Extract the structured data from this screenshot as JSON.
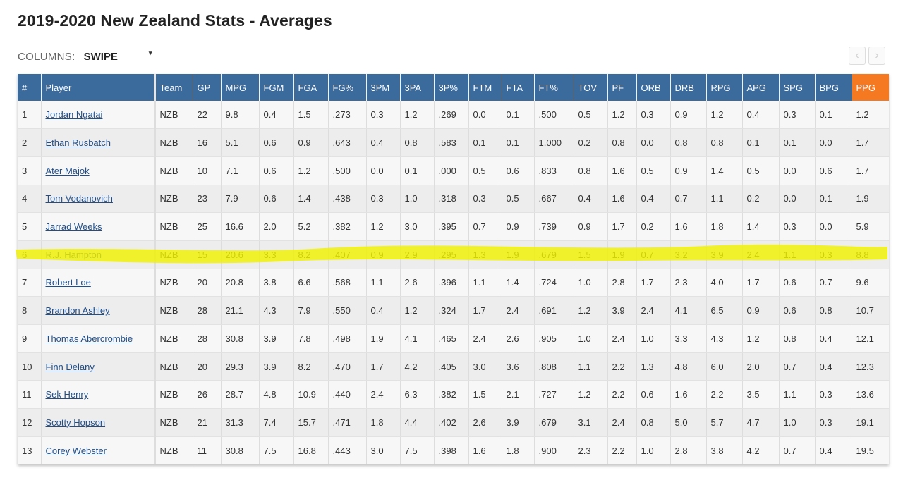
{
  "header": {
    "title": "2019-2020 New Zealand Stats - Averages"
  },
  "columns_control": {
    "label": "COLUMNS:",
    "value": "SWIPE",
    "caret": "▾"
  },
  "pager": {
    "prev": "‹",
    "next": "›"
  },
  "colors": {
    "header_bg": "#3b6a9d",
    "ppg_header_bg": "#f47920",
    "highlight": "#f0f000",
    "link": "#1f4e8a"
  },
  "table": {
    "columns": [
      "#",
      "Player",
      "Team",
      "GP",
      "MPG",
      "FGM",
      "FGA",
      "FG%",
      "3PM",
      "3PA",
      "3P%",
      "FTM",
      "FTA",
      "FT%",
      "TOV",
      "PF",
      "ORB",
      "DRB",
      "RPG",
      "APG",
      "SPG",
      "BPG",
      "PPG"
    ],
    "rows": [
      [
        "1",
        "Jordan Ngatai",
        "NZB",
        "22",
        "9.8",
        "0.4",
        "1.5",
        ".273",
        "0.3",
        "1.2",
        ".269",
        "0.0",
        "0.1",
        ".500",
        "0.5",
        "1.2",
        "0.3",
        "0.9",
        "1.2",
        "0.4",
        "0.3",
        "0.1",
        "1.2"
      ],
      [
        "2",
        "Ethan Rusbatch",
        "NZB",
        "16",
        "5.1",
        "0.6",
        "0.9",
        ".643",
        "0.4",
        "0.8",
        ".583",
        "0.1",
        "0.1",
        "1.000",
        "0.2",
        "0.8",
        "0.0",
        "0.8",
        "0.8",
        "0.1",
        "0.1",
        "0.0",
        "1.7"
      ],
      [
        "3",
        "Ater Majok",
        "NZB",
        "10",
        "7.1",
        "0.6",
        "1.2",
        ".500",
        "0.0",
        "0.1",
        ".000",
        "0.5",
        "0.6",
        ".833",
        "0.8",
        "1.6",
        "0.5",
        "0.9",
        "1.4",
        "0.5",
        "0.0",
        "0.6",
        "1.7"
      ],
      [
        "4",
        "Tom Vodanovich",
        "NZB",
        "23",
        "7.9",
        "0.6",
        "1.4",
        ".438",
        "0.3",
        "1.0",
        ".318",
        "0.3",
        "0.5",
        ".667",
        "0.4",
        "1.6",
        "0.4",
        "0.7",
        "1.1",
        "0.2",
        "0.0",
        "0.1",
        "1.9"
      ],
      [
        "5",
        "Jarrad Weeks",
        "NZB",
        "25",
        "16.6",
        "2.0",
        "5.2",
        ".382",
        "1.2",
        "3.0",
        ".395",
        "0.7",
        "0.9",
        ".739",
        "0.9",
        "1.7",
        "0.2",
        "1.6",
        "1.8",
        "1.4",
        "0.3",
        "0.0",
        "5.9"
      ],
      [
        "6",
        "R.J. Hampton",
        "NZB",
        "15",
        "20.6",
        "3.3",
        "8.2",
        ".407",
        "0.9",
        "2.9",
        ".295",
        "1.3",
        "1.9",
        ".679",
        "1.5",
        "1.9",
        "0.7",
        "3.2",
        "3.9",
        "2.4",
        "1.1",
        "0.3",
        "8.8"
      ],
      [
        "7",
        "Robert Loe",
        "NZB",
        "20",
        "20.8",
        "3.8",
        "6.6",
        ".568",
        "1.1",
        "2.6",
        ".396",
        "1.1",
        "1.4",
        ".724",
        "1.0",
        "2.8",
        "1.7",
        "2.3",
        "4.0",
        "1.7",
        "0.6",
        "0.7",
        "9.6"
      ],
      [
        "8",
        "Brandon Ashley",
        "NZB",
        "28",
        "21.1",
        "4.3",
        "7.9",
        ".550",
        "0.4",
        "1.2",
        ".324",
        "1.7",
        "2.4",
        ".691",
        "1.2",
        "3.9",
        "2.4",
        "4.1",
        "6.5",
        "0.9",
        "0.6",
        "0.8",
        "10.7"
      ],
      [
        "9",
        "Thomas Abercrombie",
        "NZB",
        "28",
        "30.8",
        "3.9",
        "7.8",
        ".498",
        "1.9",
        "4.1",
        ".465",
        "2.4",
        "2.6",
        ".905",
        "1.0",
        "2.4",
        "1.0",
        "3.3",
        "4.3",
        "1.2",
        "0.8",
        "0.4",
        "12.1"
      ],
      [
        "10",
        "Finn Delany",
        "NZB",
        "20",
        "29.3",
        "3.9",
        "8.2",
        ".470",
        "1.7",
        "4.2",
        ".405",
        "3.0",
        "3.6",
        ".808",
        "1.1",
        "2.2",
        "1.3",
        "4.8",
        "6.0",
        "2.0",
        "0.7",
        "0.4",
        "12.3"
      ],
      [
        "11",
        "Sek Henry",
        "NZB",
        "26",
        "28.7",
        "4.8",
        "10.9",
        ".440",
        "2.4",
        "6.3",
        ".382",
        "1.5",
        "2.1",
        ".727",
        "1.2",
        "2.2",
        "0.6",
        "1.6",
        "2.2",
        "3.5",
        "1.1",
        "0.3",
        "13.6"
      ],
      [
        "12",
        "Scotty Hopson",
        "NZB",
        "21",
        "31.3",
        "7.4",
        "15.7",
        ".471",
        "1.8",
        "4.4",
        ".402",
        "2.6",
        "3.9",
        ".679",
        "3.1",
        "2.4",
        "0.8",
        "5.0",
        "5.7",
        "4.7",
        "1.0",
        "0.3",
        "19.1"
      ],
      [
        "13",
        "Corey Webster",
        "NZB",
        "11",
        "30.8",
        "7.5",
        "16.8",
        ".443",
        "3.0",
        "7.5",
        ".398",
        "1.6",
        "1.8",
        ".900",
        "2.3",
        "2.2",
        "1.0",
        "2.8",
        "3.8",
        "4.2",
        "0.7",
        "0.4",
        "19.5"
      ]
    ]
  }
}
